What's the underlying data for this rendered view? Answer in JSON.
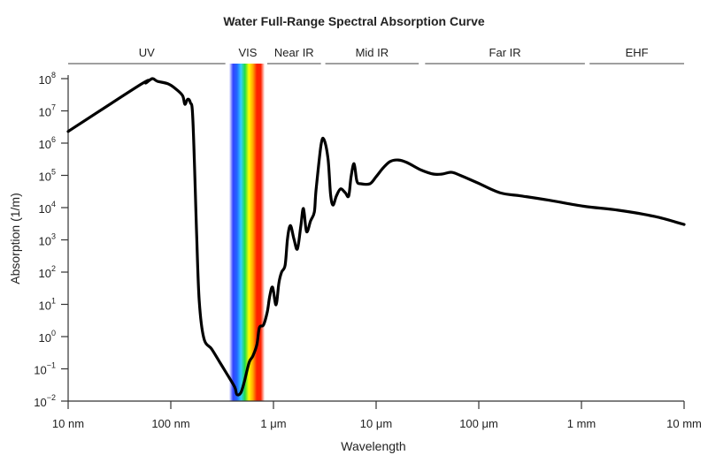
{
  "chart_data": {
    "type": "line",
    "title": "Water Full-Range Spectral Absorption Curve",
    "xlabel": "Wavelength",
    "ylabel": "Absorption (1/m)",
    "x_scale": "log",
    "y_scale": "log",
    "xlim": [
      1e-08,
      0.01
    ],
    "ylim": [
      0.01,
      100000000.0
    ],
    "grid": false,
    "x_ticks": [
      {
        "value": 1e-08,
        "label": "10 nm"
      },
      {
        "value": 1e-07,
        "label": "100 nm"
      },
      {
        "value": 1e-06,
        "label": "1 μm"
      },
      {
        "value": 1e-05,
        "label": "10 μm"
      },
      {
        "value": 0.0001,
        "label": "100 μm"
      },
      {
        "value": 0.001,
        "label": "1 mm"
      },
      {
        "value": 0.01,
        "label": "10 mm"
      }
    ],
    "y_ticks": [
      {
        "value": 100000000.0,
        "base": "10",
        "exp": "8"
      },
      {
        "value": 10000000.0,
        "base": "10",
        "exp": "7"
      },
      {
        "value": 1000000.0,
        "base": "10",
        "exp": "6"
      },
      {
        "value": 100000.0,
        "base": "10",
        "exp": "5"
      },
      {
        "value": 10000.0,
        "base": "10",
        "exp": "4"
      },
      {
        "value": 1000.0,
        "base": "10",
        "exp": "3"
      },
      {
        "value": 100.0,
        "base": "10",
        "exp": "2"
      },
      {
        "value": 10.0,
        "base": "10",
        "exp": "1"
      },
      {
        "value": 1.0,
        "base": "10",
        "exp": "0"
      },
      {
        "value": 0.1,
        "base": "10",
        "exp": "−1"
      },
      {
        "value": 0.01,
        "base": "10",
        "exp": "−2"
      }
    ],
    "bands": [
      {
        "label": "UV",
        "range": [
          1e-08,
          3.4e-07
        ]
      },
      {
        "label": "VIS",
        "range": [
          4e-07,
          7.9e-07
        ],
        "spectrum": true
      },
      {
        "label": "Near IR",
        "range": [
          8.7e-07,
          2.9e-06
        ]
      },
      {
        "label": "Mid IR",
        "range": [
          3.2e-06,
          2.6e-05
        ]
      },
      {
        "label": "Far IR",
        "range": [
          3e-05,
          0.00108
        ]
      },
      {
        "label": "EHF",
        "range": [
          0.0012,
          0.01
        ]
      }
    ],
    "spectrum_colors": [
      "#ffffff",
      "#3344ff",
      "#2266ff",
      "#33ccff",
      "#22dd44",
      "#ffff00",
      "#ffaa00",
      "#ff2200",
      "#ff2200",
      "#ffffff"
    ],
    "series": [
      {
        "color": "#000000",
        "points": [
          [
            1e-08,
            2300000.0
          ],
          [
            5.2e-08,
            69000000.0
          ],
          [
            5.7e-08,
            73000000.0
          ],
          [
            6.6e-08,
            100000000.0
          ],
          [
            7.4e-08,
            83000000.0
          ],
          [
            9.4e-08,
            69000000.0
          ],
          [
            1.1e-07,
            50000000.0
          ],
          [
            1.3e-07,
            30000000.0
          ],
          [
            1.37e-07,
            16000000.0
          ],
          [
            1.46e-07,
            23000000.0
          ],
          [
            1.55e-07,
            18000000.0
          ],
          [
            1.64e-07,
            5500000.0
          ],
          [
            1.78e-07,
            2100.0
          ],
          [
            1.89e-07,
            13
          ],
          [
            2.1e-07,
            0.88
          ],
          [
            2.5e-07,
            0.41
          ],
          [
            3e-07,
            0.16
          ],
          [
            3.6e-07,
            0.062
          ],
          [
            4.2e-07,
            0.027
          ],
          [
            4.4e-07,
            0.016
          ],
          [
            4.8e-07,
            0.018
          ],
          [
            5.2e-07,
            0.04
          ],
          [
            5.8e-07,
            0.16
          ],
          [
            6.3e-07,
            0.25
          ],
          [
            6.9e-07,
            0.57
          ],
          [
            7.3e-07,
            1.9
          ],
          [
            8e-07,
            2.3
          ],
          [
            8.7e-07,
            5.8
          ],
          [
            9.2e-07,
            18
          ],
          [
            9.8e-07,
            34
          ],
          [
            1.06e-06,
            9.7
          ],
          [
            1.13e-06,
            47
          ],
          [
            1.2e-06,
            100
          ],
          [
            1.3e-06,
            166
          ],
          [
            1.37e-06,
            1100.0
          ],
          [
            1.46e-06,
            2800.0
          ],
          [
            1.58e-06,
            1100.0
          ],
          [
            1.71e-06,
            520
          ],
          [
            1.85e-06,
            2800.0
          ],
          [
            1.96e-06,
            9400.0
          ],
          [
            2.1e-06,
            1800.0
          ],
          [
            2.3e-06,
            3900.0
          ],
          [
            2.5e-06,
            7300.0
          ],
          [
            2.6e-06,
            35000.0
          ],
          [
            2.9e-06,
            830000.0
          ],
          [
            3.1e-06,
            1300000.0
          ],
          [
            3.4e-06,
            320000.0
          ],
          [
            3.6e-06,
            26000.0
          ],
          [
            3.8e-06,
            12000.0
          ],
          [
            4.1e-06,
            23000.0
          ],
          [
            4.5e-06,
            38000.0
          ],
          [
            5e-06,
            29000.0
          ],
          [
            5.4e-06,
            23000.0
          ],
          [
            5.7e-06,
            91000.0
          ],
          [
            6.1e-06,
            230000.0
          ],
          [
            6.5e-06,
            66000.0
          ],
          [
            7.1e-06,
            55000.0
          ],
          [
            8.7e-06,
            55000.0
          ],
          [
            1e-05,
            91000.0
          ],
          [
            1.17e-05,
            170000.0
          ],
          [
            1.37e-05,
            270000.0
          ],
          [
            1.64e-05,
            300000.0
          ],
          [
            2e-05,
            250000.0
          ],
          [
            2.7e-05,
            150000.0
          ],
          [
            3.6e-05,
            110000.0
          ],
          [
            4.4e-05,
            110000.0
          ],
          [
            5.4e-05,
            125000.0
          ],
          [
            6.6e-05,
            100000.0
          ],
          [
            9.8e-05,
            58000.0
          ],
          [
            0.00016,
            29000.0
          ],
          [
            0.00026,
            23000.0
          ],
          [
            0.00048,
            17000.0
          ],
          [
            0.00106,
            11000.0
          ],
          [
            0.0023,
            8300.0
          ],
          [
            0.0052,
            5300.0
          ],
          [
            0.01,
            3000.0
          ]
        ]
      }
    ]
  }
}
